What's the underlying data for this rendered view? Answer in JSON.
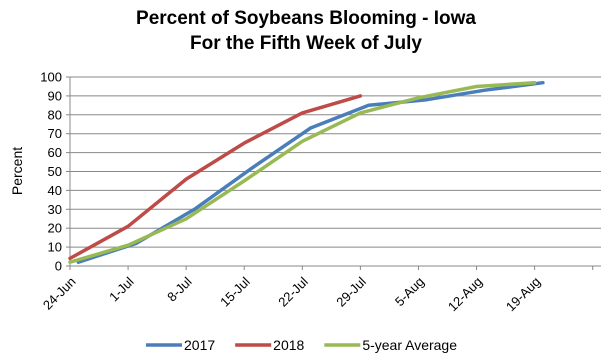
{
  "chart_data": {
    "type": "line",
    "title_lines": [
      "Percent of Soybeans Blooming - Iowa",
      "For the Fifth Week of July"
    ],
    "ylabel": "Percent",
    "xlabel": "",
    "x_tick_labels": [
      "24-Jun",
      "1-Jul",
      "8-Jul",
      "15-Jul",
      "22-Jul",
      "29-Jul",
      "5-Aug",
      "12-Aug",
      "19-Aug"
    ],
    "ylim": [
      0,
      100
    ],
    "y_ticks": [
      0,
      10,
      20,
      30,
      40,
      50,
      60,
      70,
      80,
      90,
      100
    ],
    "grid": true,
    "legend_position": "bottom",
    "series": [
      {
        "name": "2017",
        "color": "#4a7ebb",
        "points": [
          {
            "x": "2017-06-25",
            "y": 2
          },
          {
            "x": "2017-07-02",
            "y": 12
          },
          {
            "x": "2017-07-09",
            "y": 30
          },
          {
            "x": "2017-07-16",
            "y": 52
          },
          {
            "x": "2017-07-23",
            "y": 73
          },
          {
            "x": "2017-07-30",
            "y": 85
          },
          {
            "x": "2017-08-06",
            "y": 88
          },
          {
            "x": "2017-08-13",
            "y": 93
          },
          {
            "x": "2017-08-20",
            "y": 97
          }
        ]
      },
      {
        "name": "2018",
        "color": "#be4b48",
        "points": [
          {
            "x": "2018-06-24",
            "y": 4
          },
          {
            "x": "2018-07-01",
            "y": 21
          },
          {
            "x": "2018-07-08",
            "y": 46
          },
          {
            "x": "2018-07-15",
            "y": 65
          },
          {
            "x": "2018-07-22",
            "y": 81
          },
          {
            "x": "2018-07-29",
            "y": 90
          }
        ]
      },
      {
        "name": "5-year Average",
        "color": "#98b954",
        "points": [
          {
            "x": "06-24",
            "y": 2
          },
          {
            "x": "07-01",
            "y": 11
          },
          {
            "x": "07-08",
            "y": 25
          },
          {
            "x": "07-15",
            "y": 45
          },
          {
            "x": "07-22",
            "y": 66
          },
          {
            "x": "07-29",
            "y": 81
          },
          {
            "x": "08-05",
            "y": 89
          },
          {
            "x": "08-12",
            "y": 95
          },
          {
            "x": "08-19",
            "y": 97
          }
        ]
      }
    ]
  }
}
